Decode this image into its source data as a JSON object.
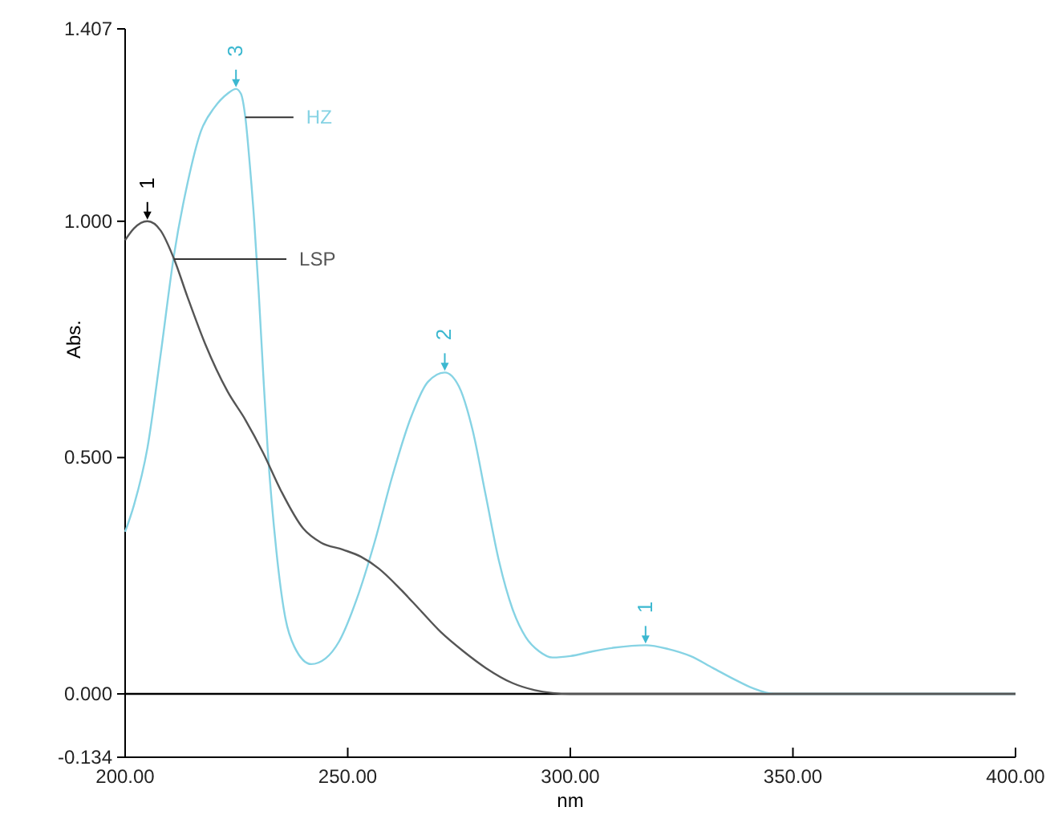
{
  "chart_data": {
    "type": "line",
    "xlabel": "nm",
    "ylabel": "Abs.",
    "xlim": [
      200,
      400
    ],
    "ylim": [
      -0.134,
      1.407
    ],
    "xticks": [
      {
        "value": 200,
        "label": "200.00"
      },
      {
        "value": 250,
        "label": "250.00"
      },
      {
        "value": 300,
        "label": "300.00"
      },
      {
        "value": 350,
        "label": "350.00"
      },
      {
        "value": 400,
        "label": "400.00"
      }
    ],
    "yticks": [
      {
        "value": -0.134,
        "label": "-0.134"
      },
      {
        "value": 0,
        "label": "0.000"
      },
      {
        "value": 0.5,
        "label": "0.500"
      },
      {
        "value": 1,
        "label": "1.000"
      },
      {
        "value": 1.407,
        "label": "1.407"
      }
    ],
    "grid": false,
    "line_style": "solid",
    "ref_lines": [
      {
        "axis": "y",
        "value": 0,
        "color": "#000000"
      }
    ],
    "series": [
      {
        "name": "HZ",
        "color": "#86d3e4",
        "x": [
          200,
          202,
          205,
          208,
          211,
          214,
          217,
          220,
          223,
          224.9,
          226,
          227,
          228,
          229,
          230,
          231,
          232,
          234,
          236,
          238,
          241.8,
          245,
          248,
          252,
          256,
          260,
          264,
          268,
          271.8,
          275,
          278,
          281,
          284,
          287,
          290,
          293,
          296,
          300,
          305,
          310,
          316.9,
          322,
          327,
          332,
          337,
          341,
          345.7,
          400
        ],
        "values": [
          0.343,
          0.4,
          0.52,
          0.72,
          0.93,
          1.08,
          1.19,
          1.24,
          1.27,
          1.28,
          1.27,
          1.22,
          1.12,
          1.0,
          0.85,
          0.68,
          0.52,
          0.3,
          0.16,
          0.1,
          0.063,
          0.075,
          0.11,
          0.2,
          0.32,
          0.46,
          0.58,
          0.66,
          0.68,
          0.65,
          0.56,
          0.42,
          0.28,
          0.18,
          0.12,
          0.09,
          0.077,
          0.08,
          0.09,
          0.098,
          0.103,
          0.095,
          0.08,
          0.055,
          0.03,
          0.012,
          0,
          0
        ]
      },
      {
        "name": "LSP",
        "color": "#555555",
        "x": [
          200,
          202,
          205,
          208,
          211,
          214,
          218,
          223,
          227,
          231,
          235,
          240,
          244,
          249,
          253,
          257,
          262,
          266,
          271,
          276,
          281,
          287,
          292,
          296,
          300,
          400
        ],
        "values": [
          0.96,
          0.985,
          1.0,
          0.98,
          0.92,
          0.84,
          0.74,
          0.64,
          0.58,
          0.51,
          0.43,
          0.35,
          0.32,
          0.305,
          0.29,
          0.265,
          0.22,
          0.18,
          0.13,
          0.09,
          0.055,
          0.023,
          0.008,
          0.002,
          0,
          0
        ]
      }
    ],
    "annotations": [
      {
        "text": "1",
        "x": 205,
        "y": 1.0
      },
      {
        "text": "3",
        "x": 224.9,
        "y": 1.28
      },
      {
        "text": "2",
        "x": 271.8,
        "y": 0.68
      },
      {
        "text": "1",
        "x": 316.9,
        "y": 0.103
      }
    ]
  }
}
